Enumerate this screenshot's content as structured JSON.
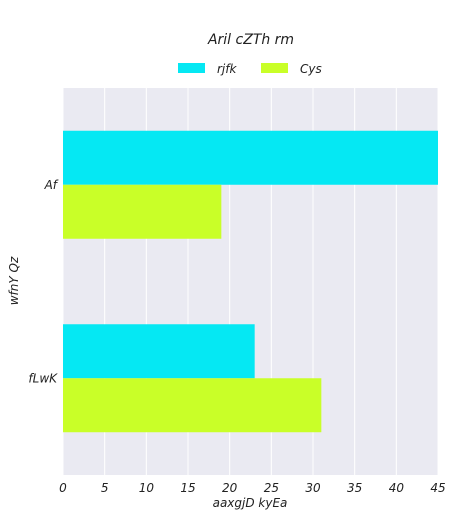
{
  "chart_data": {
    "type": "bar",
    "orientation": "horizontal",
    "title": "Aril cZTh rm",
    "xlabel": "aaxgjD kyEa",
    "ylabel": "wfnY Qz",
    "categories": [
      "Af",
      "fLwK"
    ],
    "series": [
      {
        "name": "rjfk",
        "values": [
          45,
          23
        ],
        "color": "#05e8f3"
      },
      {
        "name": "Cys",
        "values": [
          19,
          31
        ],
        "color": "#c9ff28"
      }
    ],
    "xlim": [
      0,
      45
    ],
    "xticks": [
      0,
      5,
      10,
      15,
      20,
      25,
      30,
      35,
      40,
      45
    ],
    "grid": true,
    "legend_position": "top-center",
    "background_color": "#eaeaf2"
  }
}
